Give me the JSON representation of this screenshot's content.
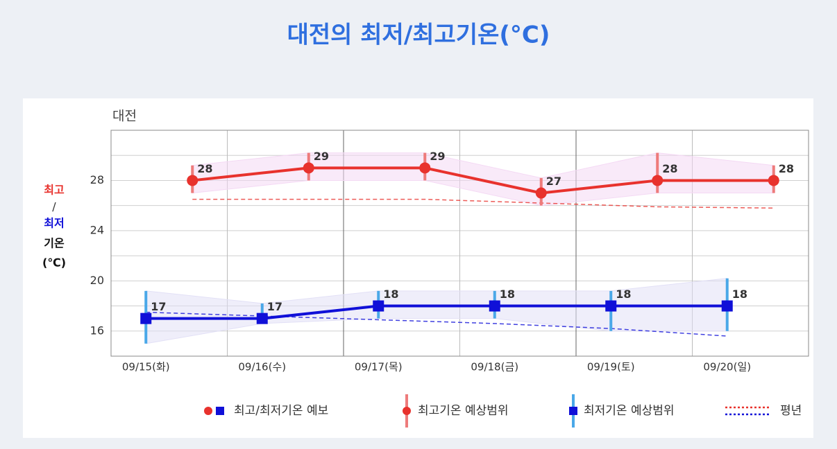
{
  "chart_data": {
    "type": "line",
    "title": "대전의 최저/최고기온(°C)",
    "subtitle": "대전",
    "y_label": [
      "최고",
      "/",
      "최저",
      "기온",
      "(℃)"
    ],
    "categories": [
      "09/15(화)",
      "09/16(수)",
      "09/17(목)",
      "09/18(금)",
      "09/19(토)",
      "09/20(일)"
    ],
    "series": [
      {
        "color": "#e8322d",
        "band_color": "#f4d9f4",
        "range_color": "#ee7b7b",
        "position": 0.7,
        "values": [
          28,
          29,
          29,
          27,
          28,
          28
        ],
        "range_high": [
          29.2,
          30.2,
          30.2,
          28.2,
          30.2,
          29.2
        ],
        "range_low": [
          27,
          28,
          28,
          26,
          27,
          27
        ],
        "normal": [
          26.5,
          26.5,
          26.5,
          26.2,
          25.9,
          25.8
        ]
      },
      {
        "color": "#1010d8",
        "band_color": "#e2e0f6",
        "range_color": "#4aa8e8",
        "position": 0.3,
        "values": [
          17,
          17,
          18,
          18,
          18,
          18
        ],
        "range_high": [
          19.2,
          18.2,
          19.2,
          19.2,
          19.2,
          20.2
        ],
        "range_low": [
          15,
          16.6,
          17,
          17,
          16,
          16
        ],
        "normal": [
          17.5,
          17.2,
          16.9,
          16.6,
          16.2,
          15.6
        ]
      }
    ],
    "ylim": [
      14,
      32
    ],
    "yticks": [
      16,
      20,
      24,
      28
    ],
    "minor_yticks": [
      18,
      22,
      26,
      30
    ],
    "grid": true,
    "legend": [
      "최고/최저기온 예보",
      "최고기온 예상범위",
      "최저기온 예상범위",
      "평년"
    ]
  }
}
